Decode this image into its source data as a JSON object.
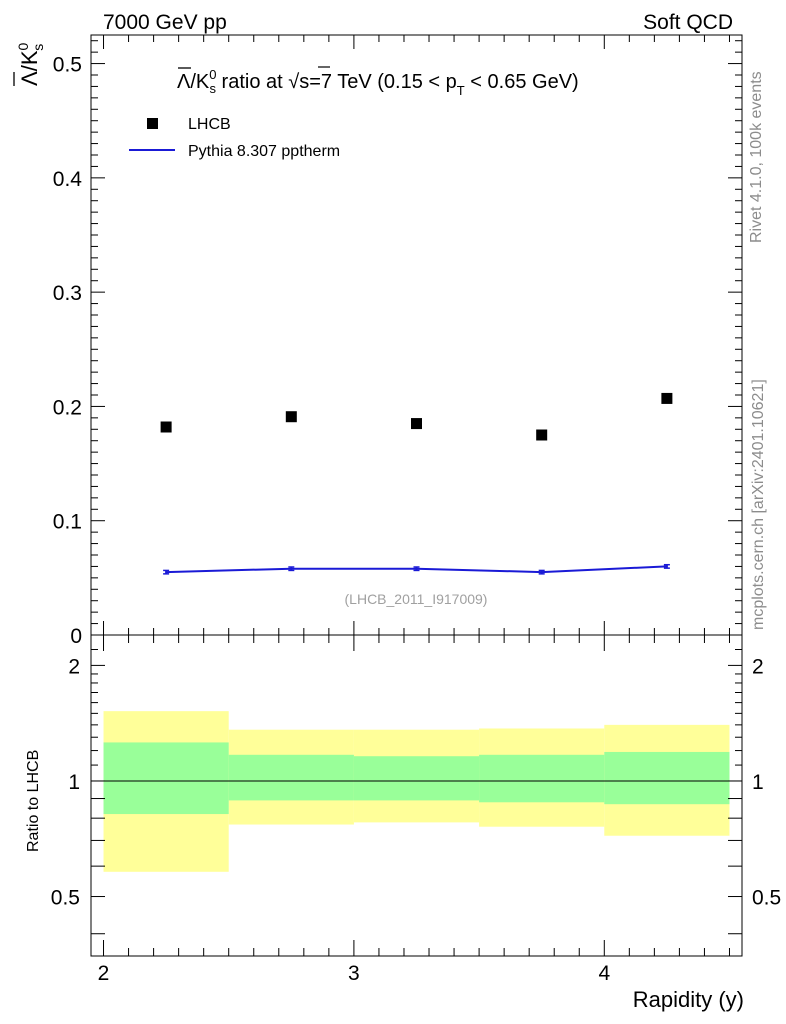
{
  "header": {
    "left": "7000 GeV pp",
    "right": "Soft QCD"
  },
  "side_text": {
    "rivet": "Rivet 4.1.0,  100k events",
    "source": "mcplots.cern.ch [arXiv:2401.10621]"
  },
  "chart_data": [
    {
      "type": "scatter",
      "panel": "main",
      "title": "Λ̄/K⁰s ratio at √s=7 TeV (0.15 < pT < 0.65 GeV)",
      "title_parts": {
        "pre": "/K",
        "sup": "0",
        "sub": "s",
        "mid": " ratio at ",
        "sqrt": "s",
        "post1": "=7 TeV (0.15 < p",
        "ptsub": "T",
        "post2": " < 0.65 GeV)"
      },
      "ylabel": "Λ̄/K⁰s",
      "ylabel_parts": {
        "lam": "Λ",
        "k": "/K",
        "sup": "0",
        "sub": "s"
      },
      "xlim": [
        1.95,
        4.55
      ],
      "ylim": [
        0,
        0.525
      ],
      "yticks": [
        0,
        0.1,
        0.2,
        0.3,
        0.4,
        0.5
      ],
      "ytick_labels": [
        "0",
        "0.1",
        "0.2",
        "0.3",
        "0.4",
        "0.5"
      ],
      "watermark": "(LHCB_2011_I917009)",
      "legend": [
        "LHCB",
        "Pythia 8.307 pptherm"
      ],
      "legend_position": "top-left",
      "series": [
        {
          "name": "LHCB",
          "marker": "square",
          "color": "#000000",
          "x": [
            2.25,
            2.75,
            3.25,
            3.75,
            4.25
          ],
          "y": [
            0.182,
            0.191,
            0.185,
            0.175,
            0.207
          ]
        },
        {
          "name": "Pythia 8.307 pptherm",
          "line": true,
          "color": "#1a1ad6",
          "x": [
            2.25,
            2.75,
            3.25,
            3.75,
            4.25
          ],
          "y": [
            0.055,
            0.058,
            0.058,
            0.055,
            0.06
          ],
          "yerr": [
            0.0015,
            0.0015,
            0.0015,
            0.0015,
            0.0015
          ]
        }
      ]
    },
    {
      "type": "area",
      "panel": "ratio",
      "ylabel": "Ratio to LHCB",
      "xlabel": "Rapidity (y)",
      "ylim": [
        0.35,
        2.4
      ],
      "yticks": [
        0.5,
        1,
        2
      ],
      "ytick_labels": [
        "0.5",
        "1",
        "2"
      ],
      "xticks": [
        2,
        3,
        4
      ],
      "xtick_labels": [
        "2",
        "3",
        "4"
      ],
      "reference": 1.0,
      "bins": [
        {
          "lo": 2.0,
          "hi": 2.5,
          "green": [
            0.82,
            1.26
          ],
          "yellow": [
            0.58,
            1.52
          ]
        },
        {
          "lo": 2.5,
          "hi": 3.0,
          "green": [
            0.89,
            1.17
          ],
          "yellow": [
            0.77,
            1.36
          ]
        },
        {
          "lo": 3.0,
          "hi": 3.5,
          "green": [
            0.89,
            1.16
          ],
          "yellow": [
            0.78,
            1.36
          ]
        },
        {
          "lo": 3.5,
          "hi": 4.0,
          "green": [
            0.88,
            1.17
          ],
          "yellow": [
            0.76,
            1.37
          ]
        },
        {
          "lo": 4.0,
          "hi": 4.5,
          "green": [
            0.87,
            1.19
          ],
          "yellow": [
            0.72,
            1.4
          ]
        }
      ],
      "colors": {
        "green": "#99ff99",
        "yellow": "#ffff99"
      }
    }
  ]
}
